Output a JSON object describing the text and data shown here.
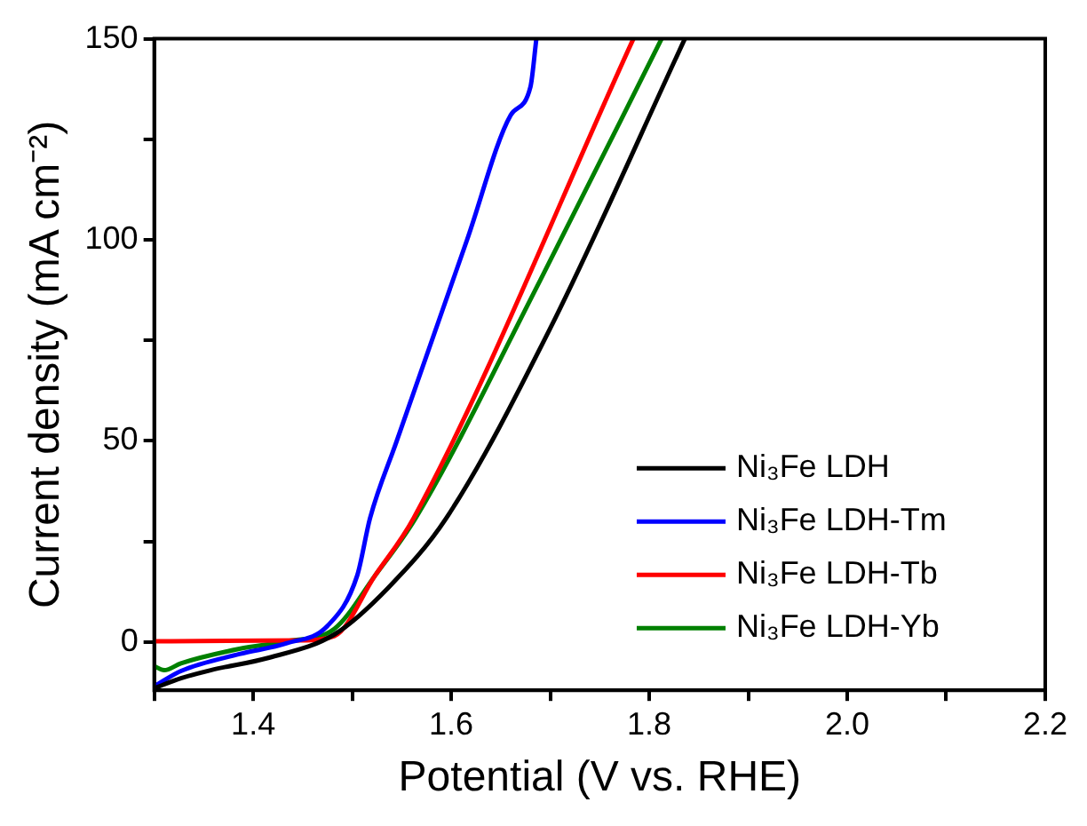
{
  "chart_data": {
    "type": "line",
    "xlabel": "Potential (V vs. RHE)",
    "ylabel": "Current density (mA cm⁻²)",
    "xlim": [
      1.3,
      2.2
    ],
    "ylim": [
      -12,
      150
    ],
    "xticks": [
      {
        "value": 1.3,
        "label": null
      },
      1.4,
      {
        "value": 1.5,
        "label": null
      },
      1.6,
      {
        "value": 1.7,
        "label": null
      },
      1.8,
      {
        "value": 1.9,
        "label": null
      },
      {
        "value": 2,
        "label": "2.0"
      },
      {
        "value": 2.1,
        "label": null
      },
      2.2
    ],
    "yticks": [
      0,
      {
        "value": 25,
        "label": null
      },
      50,
      {
        "value": 75,
        "label": null
      },
      100,
      {
        "value": 125,
        "label": null
      },
      150
    ],
    "grid": false,
    "legend": "bottom right",
    "marker": "none",
    "line_style": "solid",
    "series": [
      {
        "name": "Ni₃Fe LDH",
        "color": "#000000",
        "x": [
          1.3,
          1.327,
          1.357,
          1.416,
          1.482,
          1.536,
          1.595,
          1.7,
          1.836
        ],
        "values": [
          -11.5,
          -9,
          -7,
          -3.9,
          1.9,
          13.4,
          30.8,
          78,
          150
        ]
      },
      {
        "name": "Ni₃Fe LDH-Tm",
        "color": "#0000ff",
        "x": [
          1.3,
          1.327,
          1.386,
          1.434,
          1.475,
          1.505,
          1.518,
          1.545,
          1.616,
          1.66,
          1.68,
          1.686
        ],
        "values": [
          -11,
          -7.2,
          -3,
          -0.3,
          4,
          16.5,
          30.8,
          50,
          100,
          131,
          138,
          150
        ]
      },
      {
        "name": "Ni₃Fe LDH-Tb",
        "color": "#ff0000",
        "x": [
          1.3,
          1.448,
          1.482,
          1.523,
          1.562,
          1.784
        ],
        "values": [
          0.2,
          0.4,
          1.5,
          16.5,
          30.8,
          150
        ]
      },
      {
        "name": "Ni₃Fe LDH-Yb",
        "color": "#008000",
        "x": [
          1.3,
          1.31,
          1.327,
          1.386,
          1.434,
          1.482,
          1.523,
          1.564,
          1.69,
          1.8125
        ],
        "values": [
          -6,
          -7,
          -5.3,
          -1.7,
          0.2,
          3.3,
          16.5,
          30.8,
          90,
          150
        ]
      }
    ]
  }
}
